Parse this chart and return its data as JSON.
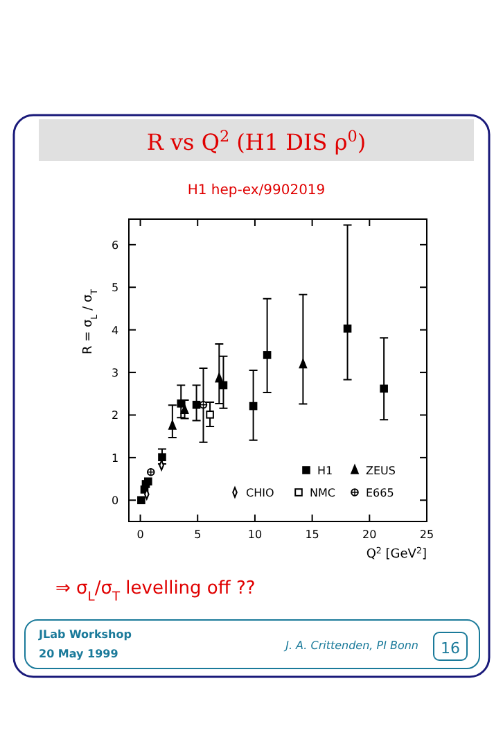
{
  "chart_data": {
    "type": "scatter",
    "title": "R vs Q$^{2}$ (H1 DIS ρ$^{0}$)",
    "subtitle": "H1 hep-ex/9902019",
    "xlabel": "Q$^{2}$ [GeV$^{2}$]",
    "ylabel": "R = σ$_{L}$ / σ$_{T}$",
    "xlim": [
      -1,
      25
    ],
    "ylim": [
      -0.5,
      6.6
    ],
    "xticks": [
      0,
      5,
      10,
      15,
      20,
      25
    ],
    "yticks": [
      0,
      1,
      2,
      3,
      4,
      5,
      6
    ],
    "grid": false,
    "legend": "bottom right",
    "series": [
      {
        "name": "H1",
        "color": "#000000",
        "marker": "square",
        "x": [
          0.08,
          0.36,
          0.48,
          0.68,
          1.9,
          3.55,
          4.9,
          7.25,
          9.86,
          11.07,
          18.08,
          21.26
        ],
        "values": [
          0,
          0.25,
          0.38,
          0.44,
          1.01,
          2.27,
          2.24,
          2.7,
          2.21,
          3.41,
          4.03,
          2.62
        ],
        "errors": [
          null,
          null,
          null,
          null,
          [
            0.85,
            1.2
          ],
          [
            1.94,
            2.7
          ],
          [
            1.87,
            2.7
          ],
          [
            2.16,
            3.38
          ],
          [
            1.41,
            3.05
          ],
          [
            2.53,
            4.73
          ],
          [
            2.83,
            6.46
          ],
          [
            1.89,
            3.81
          ]
        ]
      },
      {
        "name": "ZEUS",
        "color": "#000000",
        "marker": "triangle",
        "x": [
          2.8,
          3.87,
          6.88,
          14.2
        ],
        "values": [
          1.75,
          2.12,
          2.86,
          3.19
        ],
        "errors": [
          [
            1.47,
            2.23
          ],
          [
            1.92,
            2.35
          ],
          [
            2.27,
            3.67
          ],
          [
            2.26,
            4.83
          ]
        ]
      },
      {
        "name": "CHIO",
        "color": "#000000",
        "marker": "diamond",
        "x": [
          0.56,
          1.85
        ],
        "values": [
          0.14,
          0.82
        ],
        "errors": [
          null,
          null
        ]
      },
      {
        "name": "NMC",
        "color": "#000000",
        "marker": "square",
        "x": [
          6.08
        ],
        "values": [
          2.01
        ],
        "errors": [
          [
            1.73,
            2.3
          ]
        ]
      },
      {
        "name": "E665",
        "color": "#000000",
        "marker": "circle",
        "x": [
          0.92,
          5.5
        ],
        "values": [
          0.66,
          2.24
        ],
        "errors": [
          null,
          [
            1.36,
            3.1
          ]
        ]
      }
    ],
    "annotations": [
      "⇒ σ$_{L}$/σ$_{T}$ levelling off ??",
      "JLab Workshop",
      "20 May 1999",
      "J. A. Crittenden, PI Bonn",
      "16"
    ]
  }
}
